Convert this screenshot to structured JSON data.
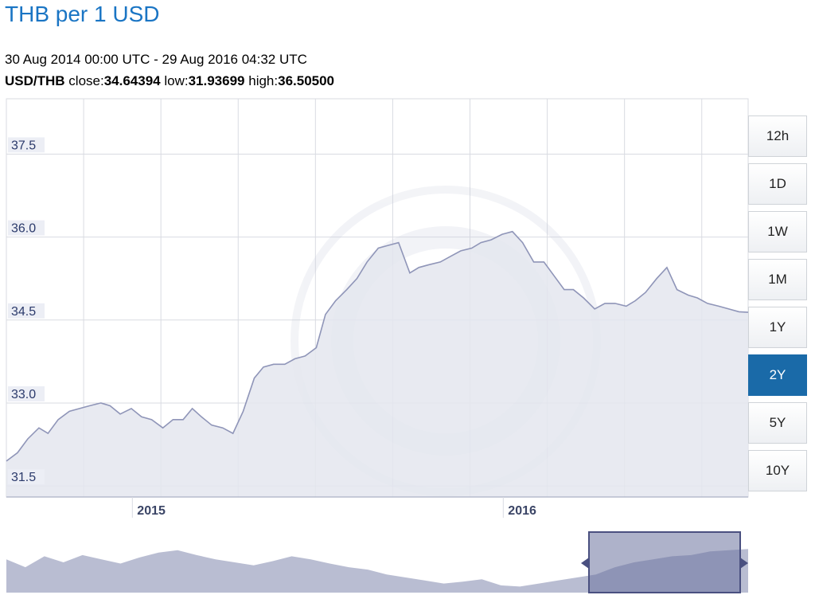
{
  "header": {
    "title": "THB per 1 USD",
    "date_range": "30 Aug 2014 00:00 UTC - 29 Aug 2016 04:32 UTC",
    "pair": "USD/THB",
    "close_label": "close:",
    "close_value": "34.64394",
    "low_label": "low:",
    "low_value": "31.93699",
    "high_label": "high:",
    "high_value": "36.50500"
  },
  "range_buttons": [
    {
      "label": "12h",
      "active": false
    },
    {
      "label": "1D",
      "active": false
    },
    {
      "label": "1W",
      "active": false
    },
    {
      "label": "1M",
      "active": false
    },
    {
      "label": "1Y",
      "active": false
    },
    {
      "label": "2Y",
      "active": true
    },
    {
      "label": "5Y",
      "active": false
    },
    {
      "label": "10Y",
      "active": false
    }
  ],
  "colors": {
    "line": "#8f95b8",
    "fill": "#e4e6ef",
    "grid": "#d9dbe2",
    "accent": "#1a75c4",
    "active_button": "#1a6aa8",
    "navigator_fill": "#b9bdd2",
    "navigator_window": "#6c739f"
  },
  "chart_data": {
    "type": "area",
    "title": "THB per 1 USD",
    "xlabel": "",
    "ylabel": "",
    "ylim": [
      31.3,
      38.5
    ],
    "yticks": [
      31.5,
      33.0,
      34.5,
      36.0,
      37.5
    ],
    "y_tick_labels": [
      "31.5",
      "33.0",
      "34.5",
      "36.0",
      "37.5"
    ],
    "x_tick_labels": [
      "2015",
      "2016"
    ],
    "x_tick_dates": [
      "2015-01-01",
      "2016-01-01"
    ],
    "xlim": [
      "2014-08-30",
      "2016-08-29"
    ],
    "grid": true,
    "series": [
      {
        "x": [
          "2014-08-30",
          "2014-09-10",
          "2014-09-20",
          "2014-10-01",
          "2014-10-10",
          "2014-10-20",
          "2014-10-31",
          "2014-11-10",
          "2014-11-20",
          "2014-12-01",
          "2014-12-10",
          "2014-12-20",
          "2014-12-31",
          "2015-01-10",
          "2015-01-20",
          "2015-01-31",
          "2015-02-10",
          "2015-02-20",
          "2015-03-01",
          "2015-03-10",
          "2015-03-20",
          "2015-03-31",
          "2015-04-10",
          "2015-04-20",
          "2015-05-01",
          "2015-05-10",
          "2015-05-20",
          "2015-05-31",
          "2015-06-10",
          "2015-06-20",
          "2015-07-01",
          "2015-07-10",
          "2015-07-20",
          "2015-07-31",
          "2015-08-10",
          "2015-08-20",
          "2015-08-31",
          "2015-09-10",
          "2015-09-20",
          "2015-10-01",
          "2015-10-10",
          "2015-10-20",
          "2015-10-31",
          "2015-11-10",
          "2015-11-20",
          "2015-12-01",
          "2015-12-10",
          "2015-12-20",
          "2015-12-31",
          "2016-01-10",
          "2016-01-20",
          "2016-01-31",
          "2016-02-10",
          "2016-02-20",
          "2016-03-01",
          "2016-03-10",
          "2016-03-20",
          "2016-03-31",
          "2016-04-10",
          "2016-04-20",
          "2016-05-01",
          "2016-05-10",
          "2016-05-20",
          "2016-05-31",
          "2016-06-10",
          "2016-06-20",
          "2016-07-01",
          "2016-07-10",
          "2016-07-20",
          "2016-07-31",
          "2016-08-10",
          "2016-08-20",
          "2016-08-29"
        ],
        "values": [
          31.95,
          32.1,
          32.35,
          32.55,
          32.45,
          32.7,
          32.85,
          32.9,
          32.95,
          33.0,
          32.95,
          32.8,
          32.9,
          32.75,
          32.7,
          32.55,
          32.7,
          32.7,
          32.9,
          32.75,
          32.6,
          32.55,
          32.45,
          32.85,
          33.45,
          33.65,
          33.7,
          33.7,
          33.8,
          33.85,
          34.0,
          34.6,
          34.85,
          35.05,
          35.25,
          35.55,
          35.8,
          35.85,
          35.9,
          35.35,
          35.45,
          35.5,
          35.55,
          35.65,
          35.75,
          35.8,
          35.9,
          35.95,
          36.05,
          36.1,
          35.9,
          35.55,
          35.55,
          35.3,
          35.05,
          35.05,
          34.9,
          34.7,
          34.8,
          34.8,
          34.75,
          34.85,
          35.0,
          35.25,
          35.45,
          35.05,
          34.95,
          34.9,
          34.8,
          34.75,
          34.7,
          34.65,
          34.64
        ]
      }
    ]
  }
}
